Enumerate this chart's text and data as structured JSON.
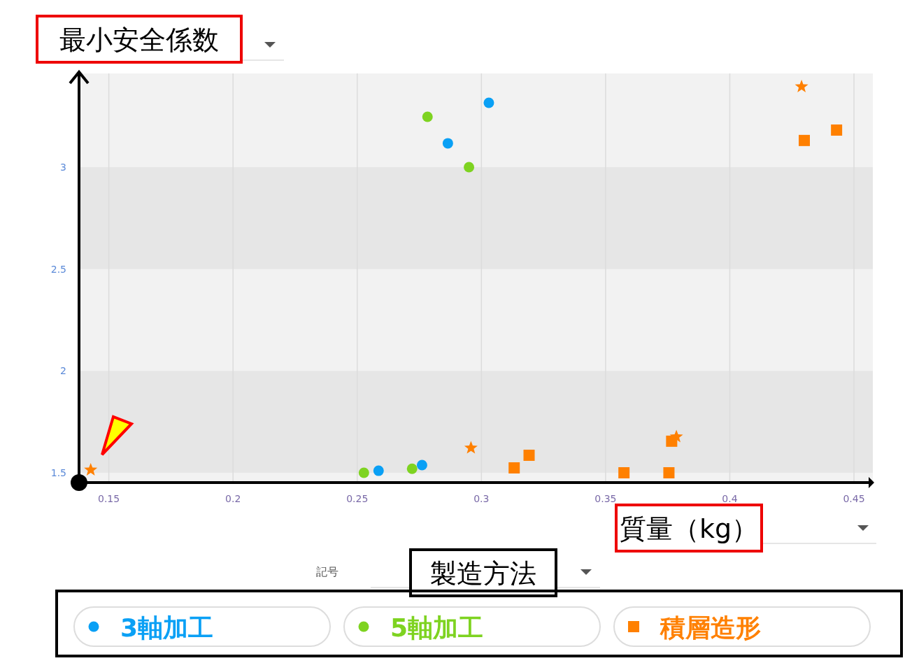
{
  "chart_data": {
    "type": "scatter",
    "ylabel": "最小安全係数",
    "xlabel": "質量（kg）",
    "legend_title": "製造方法",
    "annotations": [
      "記号"
    ],
    "xlim": [
      0.138,
      0.4576
    ],
    "ylim": [
      1.452,
      3.46
    ],
    "xticks": [
      0.15,
      0.2,
      0.25,
      0.3,
      0.35,
      0.4,
      0.45
    ],
    "yticks": [
      1.5,
      2,
      2.5,
      3
    ],
    "grid": "x",
    "legend": "bottom",
    "bands": [
      {
        "axis": "y",
        "from": 2.5,
        "to": 3,
        "color": "#e6e6e6"
      },
      {
        "axis": "y",
        "from": 1.5,
        "to": 2,
        "color": "#e6e6e6"
      }
    ],
    "series": [
      {
        "name": "3軸加工",
        "color": "#0aa0f5",
        "marker": "circle",
        "x": [
          0.303,
          0.2865,
          0.2586,
          0.2761
        ],
        "values": [
          3.316,
          3.117,
          1.51,
          1.538
        ]
      },
      {
        "name": "5軸加工",
        "color": "#7ed321",
        "marker": "circle",
        "x": [
          0.2783,
          0.295,
          0.2527,
          0.2721
        ],
        "values": [
          3.247,
          3.0,
          1.5,
          1.52
        ]
      },
      {
        "name": "積層造形",
        "color": "#ff8000",
        "marker": "square",
        "x": [
          0.43,
          0.443,
          0.3766,
          0.3192,
          0.3132,
          0.3574,
          0.3755
        ],
        "values": [
          3.131,
          3.182,
          1.655,
          1.586,
          1.524,
          1.5,
          1.5
        ]
      },
      {
        "color": "#ff8000",
        "marker": "star",
        "x": [
          0.4289,
          0.1427,
          0.2958,
          0.3785
        ],
        "values": [
          3.395,
          1.514,
          1.622,
          1.677
        ]
      }
    ]
  }
}
